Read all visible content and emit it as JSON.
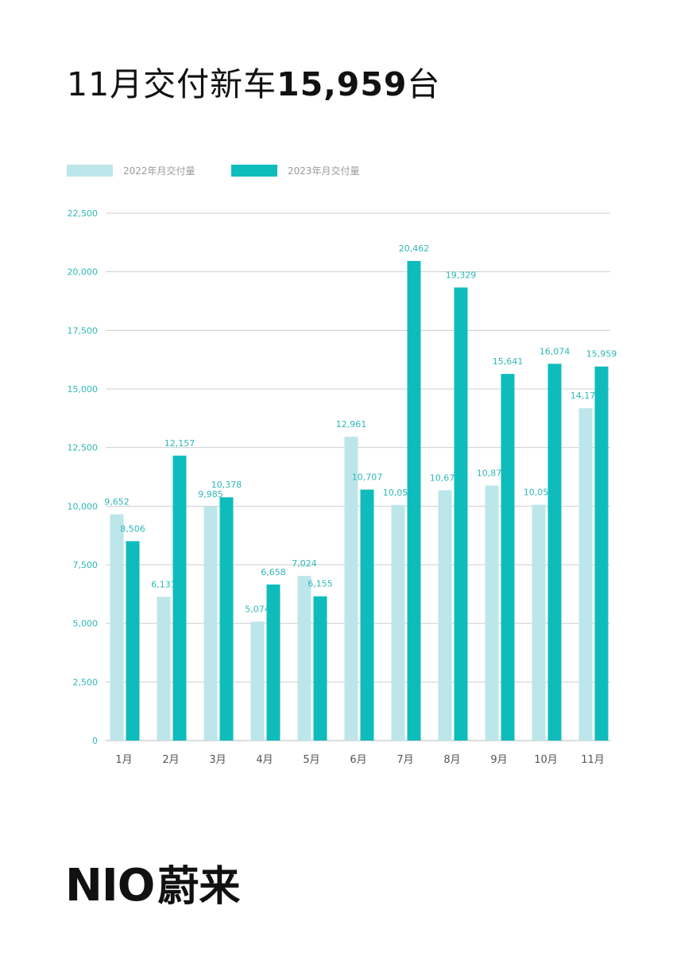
{
  "header": {
    "title_prefix": "11月交付新车",
    "title_number": "15,959",
    "title_suffix": "台"
  },
  "brand": {
    "logo_text": "NIO",
    "logo_cn": "蔚来"
  },
  "colors": {
    "series_2022": "#bde6ea",
    "series_2023": "#0fbcbc",
    "label_text": "#2fb8b8",
    "axis_text": "#555555",
    "gridline": "#cfcfcf"
  },
  "chart_data": {
    "type": "bar",
    "title": "11月交付新车15,959台",
    "categories": [
      "1月",
      "2月",
      "3月",
      "4月",
      "5月",
      "6月",
      "7月",
      "8月",
      "9月",
      "10月",
      "11月"
    ],
    "series": [
      {
        "name": "2022年月交付量",
        "values": [
          9652,
          6131,
          9985,
          5074,
          7024,
          12961,
          10052,
          10677,
          10878,
          10059,
          14178
        ],
        "labels": [
          "9,652",
          "6,131",
          "9,985",
          "5,074",
          "7,024",
          "12,961",
          "10,052",
          "10,677",
          "10,878",
          "10,059",
          "14,178"
        ]
      },
      {
        "name": "2023年月交付量",
        "values": [
          8506,
          12157,
          10378,
          6658,
          6155,
          10707,
          20462,
          19329,
          15641,
          16074,
          15959
        ],
        "labels": [
          "8,506",
          "12,157",
          "10,378",
          "6,658",
          "6,155",
          "10,707",
          "20,462",
          "19,329",
          "15,641",
          "16,074",
          "15,959"
        ]
      }
    ],
    "ylim": [
      0,
      22500
    ],
    "yticks": [
      0,
      2500,
      5000,
      7500,
      10000,
      12500,
      15000,
      17500,
      20000,
      22500
    ],
    "ytick_labels": [
      "0",
      "2,500",
      "5,000",
      "7,500",
      "10,000",
      "12,500",
      "15,000",
      "17,500",
      "20,000",
      "22,500"
    ],
    "grid": true,
    "legend_position": "top-left"
  }
}
